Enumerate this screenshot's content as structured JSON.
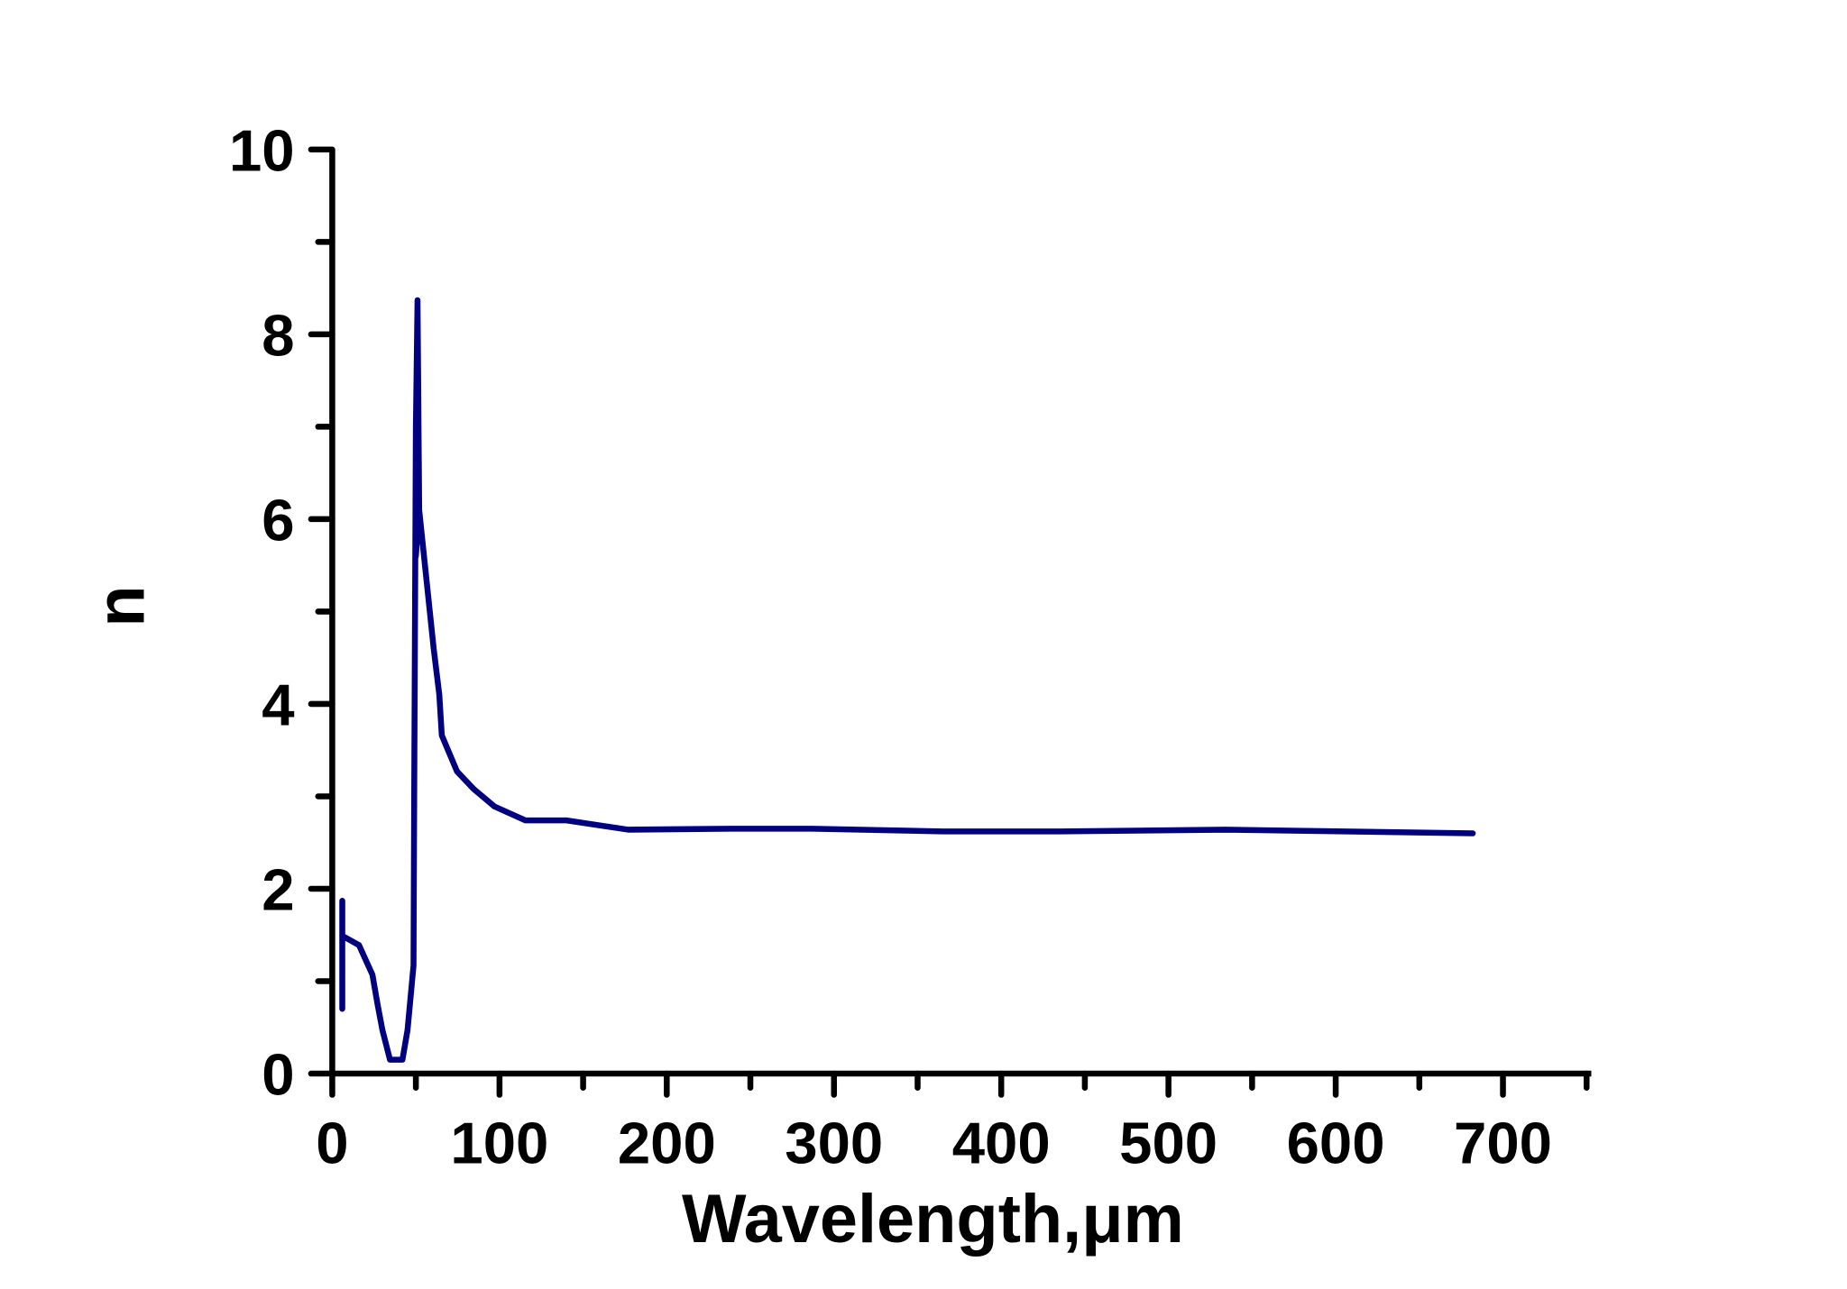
{
  "chart_data": {
    "type": "line",
    "title": "",
    "xlabel": "Wavelength,μm",
    "ylabel": "n",
    "xlim": [
      0,
      750
    ],
    "ylim": [
      0,
      10
    ],
    "x_ticks": [
      0,
      100,
      200,
      300,
      400,
      500,
      600,
      700
    ],
    "x_tick_labels": [
      "0",
      "100",
      "200",
      "300",
      "400",
      "500",
      "600",
      "700"
    ],
    "x_minor_step": 50,
    "y_ticks": [
      0,
      2,
      4,
      6,
      8,
      10
    ],
    "y_tick_labels": [
      "0",
      "2",
      "4",
      "6",
      "8",
      "10"
    ],
    "y_minor_step": 1,
    "grid": false,
    "line_color": "#000080",
    "series": [
      {
        "x": [
          6,
          6,
          6,
          16,
          24,
          27,
          30,
          34.5,
          42,
          45,
          48.6,
          49,
          50,
          51,
          52,
          50,
          52,
          60.6,
          64,
          65.5,
          74.6,
          84.5,
          97,
          115.5,
          140,
          177,
          238,
          287,
          365,
          435,
          534,
          682
        ],
        "y": [
          0.7,
          1.87,
          1.49,
          1.39,
          1.07,
          0.76,
          0.47,
          0.15,
          0.15,
          0.47,
          1.17,
          3.1,
          7.0,
          8.37,
          6.1,
          5.6,
          6.1,
          4.6,
          4.1,
          3.66,
          3.27,
          3.08,
          2.89,
          2.74,
          2.74,
          2.64,
          2.65,
          2.65,
          2.62,
          2.62,
          2.64,
          2.6
        ]
      }
    ]
  }
}
